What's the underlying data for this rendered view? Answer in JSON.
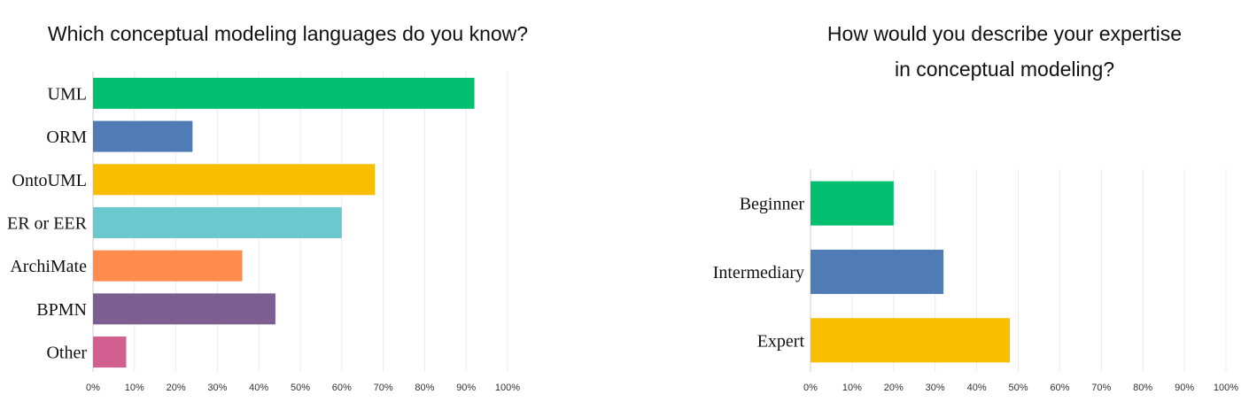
{
  "chart_data": [
    {
      "type": "bar",
      "orientation": "horizontal",
      "title": "Which conceptual modeling languages do you know?",
      "categories": [
        "UML",
        "ORM",
        "OntoUML",
        "ER or EER",
        "ArchiMate",
        "BPMN",
        "Other"
      ],
      "values": [
        92,
        24,
        68,
        60,
        36,
        44,
        8
      ],
      "colors": [
        "#00bf6f",
        "#507cb6",
        "#f9be00",
        "#6bc8cd",
        "#ff8b4f",
        "#7d5e90",
        "#d25f90"
      ],
      "xlim": [
        0,
        100
      ],
      "xticks": [
        "0%",
        "10%",
        "20%",
        "30%",
        "40%",
        "50%",
        "60%",
        "70%",
        "80%",
        "90%",
        "100%"
      ],
      "grid": true
    },
    {
      "type": "bar",
      "orientation": "horizontal",
      "title": "How would you describe your expertise in conceptual modeling?",
      "title_lines": [
        "How would you describe your expertise",
        "in conceptual modeling?"
      ],
      "categories": [
        "Beginner",
        "Intermediary",
        "Expert"
      ],
      "values": [
        20,
        32,
        48
      ],
      "colors": [
        "#00bf6f",
        "#507cb6",
        "#f9be00"
      ],
      "xlim": [
        0,
        100
      ],
      "xticks": [
        "0%",
        "10%",
        "20%",
        "30%",
        "40%",
        "50%",
        "60%",
        "70%",
        "80%",
        "90%",
        "100%"
      ],
      "grid": true
    }
  ]
}
